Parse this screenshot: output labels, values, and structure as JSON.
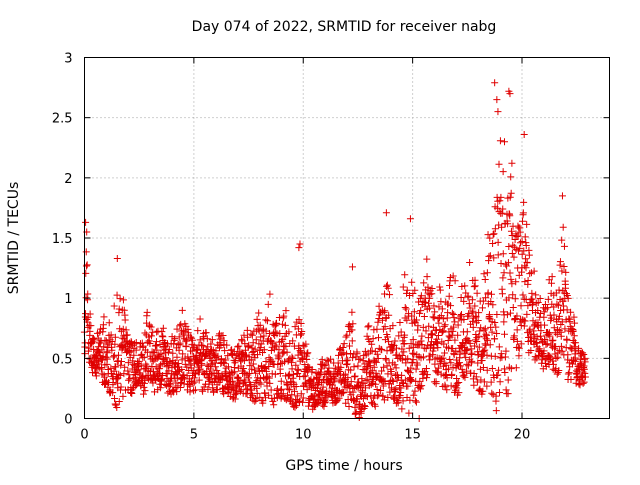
{
  "chart_data": {
    "type": "scatter",
    "title": "Day 074 of 2022, SRMTID for receiver nabg",
    "xlabel": "GPS time / hours",
    "ylabel": "SRMTID / TECUs",
    "xlim": [
      0,
      24
    ],
    "ylim": [
      0,
      3
    ],
    "x_ticks": [
      0,
      5,
      10,
      15,
      20
    ],
    "y_ticks": [
      0,
      0.5,
      1,
      1.5,
      2,
      2.5,
      3
    ],
    "x_tick_labels": [
      "0",
      "5",
      "10",
      "15",
      "20"
    ],
    "y_tick_labels": [
      "0",
      "0.5",
      "1",
      "1.5",
      "2",
      "2.5",
      "3"
    ],
    "grid": true,
    "marker": "+",
    "color": "#e00000",
    "envelope": [
      [
        0.0,
        0.9
      ],
      [
        0.1,
        1.6
      ],
      [
        0.3,
        0.9
      ],
      [
        0.5,
        0.7
      ],
      [
        1.0,
        1.1
      ],
      [
        1.5,
        1.3
      ],
      [
        2.0,
        0.9
      ],
      [
        2.5,
        0.75
      ],
      [
        3.0,
        1.0
      ],
      [
        3.5,
        0.8
      ],
      [
        4.0,
        0.9
      ],
      [
        4.5,
        0.95
      ],
      [
        5.0,
        0.9
      ],
      [
        5.5,
        0.95
      ],
      [
        6.0,
        0.8
      ],
      [
        6.5,
        0.75
      ],
      [
        7.0,
        0.8
      ],
      [
        7.5,
        0.9
      ],
      [
        8.0,
        1.05
      ],
      [
        8.5,
        1.1
      ],
      [
        9.0,
        1.1
      ],
      [
        9.5,
        0.9
      ],
      [
        9.8,
        1.45
      ],
      [
        10.0,
        0.7
      ],
      [
        10.5,
        0.6
      ],
      [
        11.0,
        0.6
      ],
      [
        11.5,
        0.6
      ],
      [
        12.0,
        0.85
      ],
      [
        12.2,
        1.25
      ],
      [
        12.5,
        0.7
      ],
      [
        13.0,
        0.9
      ],
      [
        13.5,
        1.2
      ],
      [
        13.8,
        1.7
      ],
      [
        14.0,
        1.0
      ],
      [
        14.5,
        1.1
      ],
      [
        14.9,
        1.65
      ],
      [
        15.2,
        1.3
      ],
      [
        15.5,
        1.6
      ],
      [
        16.0,
        1.2
      ],
      [
        16.5,
        1.3
      ],
      [
        17.0,
        1.5
      ],
      [
        17.5,
        1.3
      ],
      [
        18.0,
        1.5
      ],
      [
        18.5,
        1.9
      ],
      [
        18.8,
        2.8
      ],
      [
        19.0,
        2.4
      ],
      [
        19.4,
        2.7
      ],
      [
        19.7,
        2.0
      ],
      [
        20.0,
        2.35
      ],
      [
        20.3,
        1.5
      ],
      [
        20.7,
        1.2
      ],
      [
        21.0,
        1.2
      ],
      [
        21.5,
        1.3
      ],
      [
        21.9,
        1.85
      ],
      [
        22.2,
        1.2
      ],
      [
        22.5,
        0.8
      ],
      [
        22.9,
        0.6
      ]
    ],
    "floor": [
      [
        0.0,
        0.45
      ],
      [
        1.0,
        0.25
      ],
      [
        1.5,
        0.05
      ],
      [
        2.0,
        0.2
      ],
      [
        3.0,
        0.2
      ],
      [
        4.0,
        0.2
      ],
      [
        5.0,
        0.2
      ],
      [
        6.0,
        0.2
      ],
      [
        7.0,
        0.15
      ],
      [
        8.0,
        0.12
      ],
      [
        9.0,
        0.1
      ],
      [
        10.0,
        0.05
      ],
      [
        11.0,
        0.1
      ],
      [
        12.0,
        0.1
      ],
      [
        12.5,
        0.0
      ],
      [
        13.0,
        0.02
      ],
      [
        13.5,
        0.1
      ],
      [
        14.0,
        0.15
      ],
      [
        15.0,
        0.0
      ],
      [
        15.5,
        0.3
      ],
      [
        16.0,
        0.3
      ],
      [
        17.0,
        0.15
      ],
      [
        18.0,
        0.2
      ],
      [
        19.0,
        0.0
      ],
      [
        19.5,
        0.15
      ],
      [
        20.0,
        0.5
      ],
      [
        21.0,
        0.4
      ],
      [
        22.0,
        0.3
      ],
      [
        22.9,
        0.25
      ]
    ],
    "notable_points": [
      {
        "x": 0.05,
        "y": 1.63
      },
      {
        "x": 0.1,
        "y": 1.55
      },
      {
        "x": 1.5,
        "y": 1.33
      },
      {
        "x": 9.8,
        "y": 1.42
      },
      {
        "x": 9.85,
        "y": 1.45
      },
      {
        "x": 12.25,
        "y": 1.26
      },
      {
        "x": 13.8,
        "y": 1.71
      },
      {
        "x": 14.9,
        "y": 1.66
      },
      {
        "x": 15.3,
        "y": 0.0
      },
      {
        "x": 18.75,
        "y": 2.79
      },
      {
        "x": 18.85,
        "y": 2.65
      },
      {
        "x": 18.9,
        "y": 2.55
      },
      {
        "x": 19.4,
        "y": 2.72
      },
      {
        "x": 19.45,
        "y": 2.7
      },
      {
        "x": 19.2,
        "y": 2.3
      },
      {
        "x": 20.1,
        "y": 2.36
      },
      {
        "x": 21.85,
        "y": 1.85
      }
    ],
    "n_points": 2300
  }
}
